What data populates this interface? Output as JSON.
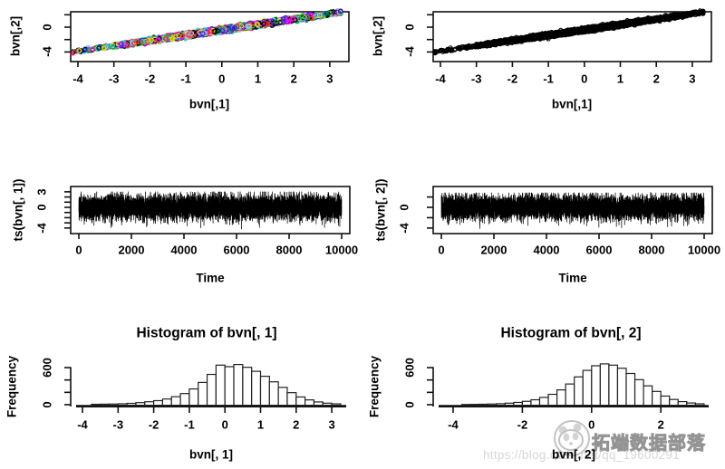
{
  "n_samples": 10000,
  "palette": [
    "#000000",
    "#FF2A2A",
    "#00C000",
    "#2222FF",
    "#00DDDD",
    "#FF00FF",
    "#EDDE00",
    "#BEBEBE"
  ],
  "watermark": {
    "brand": "拓端数据部落",
    "url": "https://blog.csdn.net/qq_19600291",
    "logo_icon": "panda-chat-bubble"
  },
  "chart_data": [
    {
      "id": "scatter-bvn-colored",
      "type": "scatter",
      "title": "",
      "xlabel": "bvn[,1]",
      "ylabel": "bvn[,2]",
      "xlim": [
        -4.25,
        3.45
      ],
      "ylim": [
        -5.6,
        2.6
      ],
      "xticks": {
        "values": [
          -4,
          -3,
          -2,
          -1,
          0,
          1,
          2,
          3
        ],
        "labels": [
          "-4",
          "-3",
          "-2",
          "-1",
          "0",
          "1",
          "2",
          "3"
        ]
      },
      "yticks": {
        "values": [
          2,
          0,
          -2,
          -4
        ],
        "labels": [
          "",
          "0",
          "",
          "-4"
        ]
      },
      "marker": "open-circle",
      "point_colors": "palette-random",
      "generator": {
        "dist": "bivariate-normal-gibbs",
        "n": 10000,
        "x_sd": 1.25,
        "slope": 0.86,
        "intercept": -0.45,
        "noise_sd": 0.13,
        "seed": 7,
        "color_seed": 999
      }
    },
    {
      "id": "scatter-bvn-black",
      "type": "scatter",
      "title": "",
      "xlabel": "bvn[,1]",
      "ylabel": "bvn[,2]",
      "xlim": [
        -4.25,
        3.45
      ],
      "ylim": [
        -5.6,
        2.6
      ],
      "xticks": {
        "values": [
          -4,
          -3,
          -2,
          -1,
          0,
          1,
          2,
          3
        ],
        "labels": [
          "-4",
          "-3",
          "-2",
          "-1",
          "0",
          "1",
          "2",
          "3"
        ]
      },
      "yticks": {
        "values": [
          2,
          0,
          -2,
          -4
        ],
        "labels": [
          "",
          "0",
          "",
          "-4"
        ]
      },
      "marker": "open-circle",
      "point_colors": "black",
      "generator": {
        "dist": "bivariate-normal-gibbs",
        "n": 10000,
        "x_sd": 1.25,
        "slope": 0.86,
        "intercept": -0.45,
        "noise_sd": 0.13,
        "seed": 7
      }
    },
    {
      "id": "trace-bvn1",
      "type": "line",
      "title": "",
      "xlabel": "Time",
      "ylabel": "ts(bvn[, 1])",
      "xlim": [
        -350,
        10400
      ],
      "ylim": [
        -5.05,
        4.05
      ],
      "xticks": {
        "values": [
          0,
          2000,
          4000,
          6000,
          8000,
          10000
        ],
        "labels": [
          "0",
          "2000",
          "4000",
          "6000",
          "8000",
          "10000"
        ]
      },
      "yticks": {
        "values": [
          3,
          2,
          1,
          0,
          -1,
          -2,
          -3,
          -4
        ],
        "labels": [
          "3",
          "",
          "",
          "0",
          "",
          "",
          "",
          "-4"
        ]
      },
      "generator": {
        "dist": "normal",
        "n": 10000,
        "mean": 0,
        "sd": 1.15,
        "clip": [
          -4.25,
          3.05
        ],
        "seed": 101
      }
    },
    {
      "id": "trace-bvn2",
      "type": "line",
      "title": "",
      "xlabel": "Time",
      "ylabel": "ts(bvn[, 2])",
      "xlim": [
        -350,
        10400
      ],
      "ylim": [
        -5.05,
        4.05
      ],
      "xticks": {
        "values": [
          0,
          2000,
          4000,
          6000,
          8000,
          10000
        ],
        "labels": [
          "0",
          "2000",
          "4000",
          "6000",
          "8000",
          "10000"
        ]
      },
      "yticks": {
        "values": [
          2,
          0,
          -2,
          -4
        ],
        "labels": [
          "",
          "0",
          "",
          "-4"
        ]
      },
      "generator": {
        "dist": "normal",
        "n": 10000,
        "mean": 0,
        "sd": 1.15,
        "clip": [
          -4.25,
          2.85
        ],
        "seed": 202
      }
    },
    {
      "id": "hist-bvn1",
      "type": "bar",
      "title": "Histogram of bvn[, 1]",
      "xlabel": "bvn[, 1]",
      "ylabel": "Frequency",
      "xlim": [
        -4.3,
        3.45
      ],
      "ylim": [
        0,
        700
      ],
      "bin_start": -3.75,
      "bin_width": 0.25,
      "counts": [
        7,
        9,
        11,
        15,
        22,
        34,
        48,
        66,
        92,
        130,
        180,
        255,
        360,
        490,
        640,
        615,
        650,
        605,
        540,
        460,
        370,
        280,
        195,
        125,
        78,
        45,
        25,
        14
      ],
      "xticks": {
        "values": [
          -4,
          -3,
          -2,
          -1,
          0,
          1,
          2,
          3
        ],
        "labels": [
          "-4",
          "-3",
          "-2",
          "-1",
          "0",
          "1",
          "2",
          "3"
        ]
      },
      "yticks": {
        "values": [
          0,
          200,
          400,
          600
        ],
        "labels": [
          "0",
          "",
          "",
          "600"
        ]
      }
    },
    {
      "id": "hist-bvn2",
      "type": "bar",
      "title": "Histogram of bvn[, 2]",
      "xlabel": "bvn[, 2]",
      "ylabel": "Frequency",
      "xlim": [
        -4.3,
        3.55
      ],
      "ylim": [
        0,
        700
      ],
      "bin_start": -3.75,
      "bin_width": 0.25,
      "counts": [
        4,
        6,
        8,
        11,
        16,
        25,
        37,
        55,
        80,
        118,
        168,
        240,
        335,
        450,
        555,
        630,
        660,
        640,
        590,
        505,
        405,
        305,
        215,
        140,
        85,
        50,
        28,
        15
      ],
      "xticks": {
        "values": [
          -4,
          -2,
          0,
          2
        ],
        "labels": [
          "-4",
          "-2",
          "0",
          "2"
        ]
      },
      "yticks": {
        "values": [
          0,
          200,
          400,
          600
        ],
        "labels": [
          "0",
          "",
          "",
          "600"
        ]
      }
    }
  ]
}
